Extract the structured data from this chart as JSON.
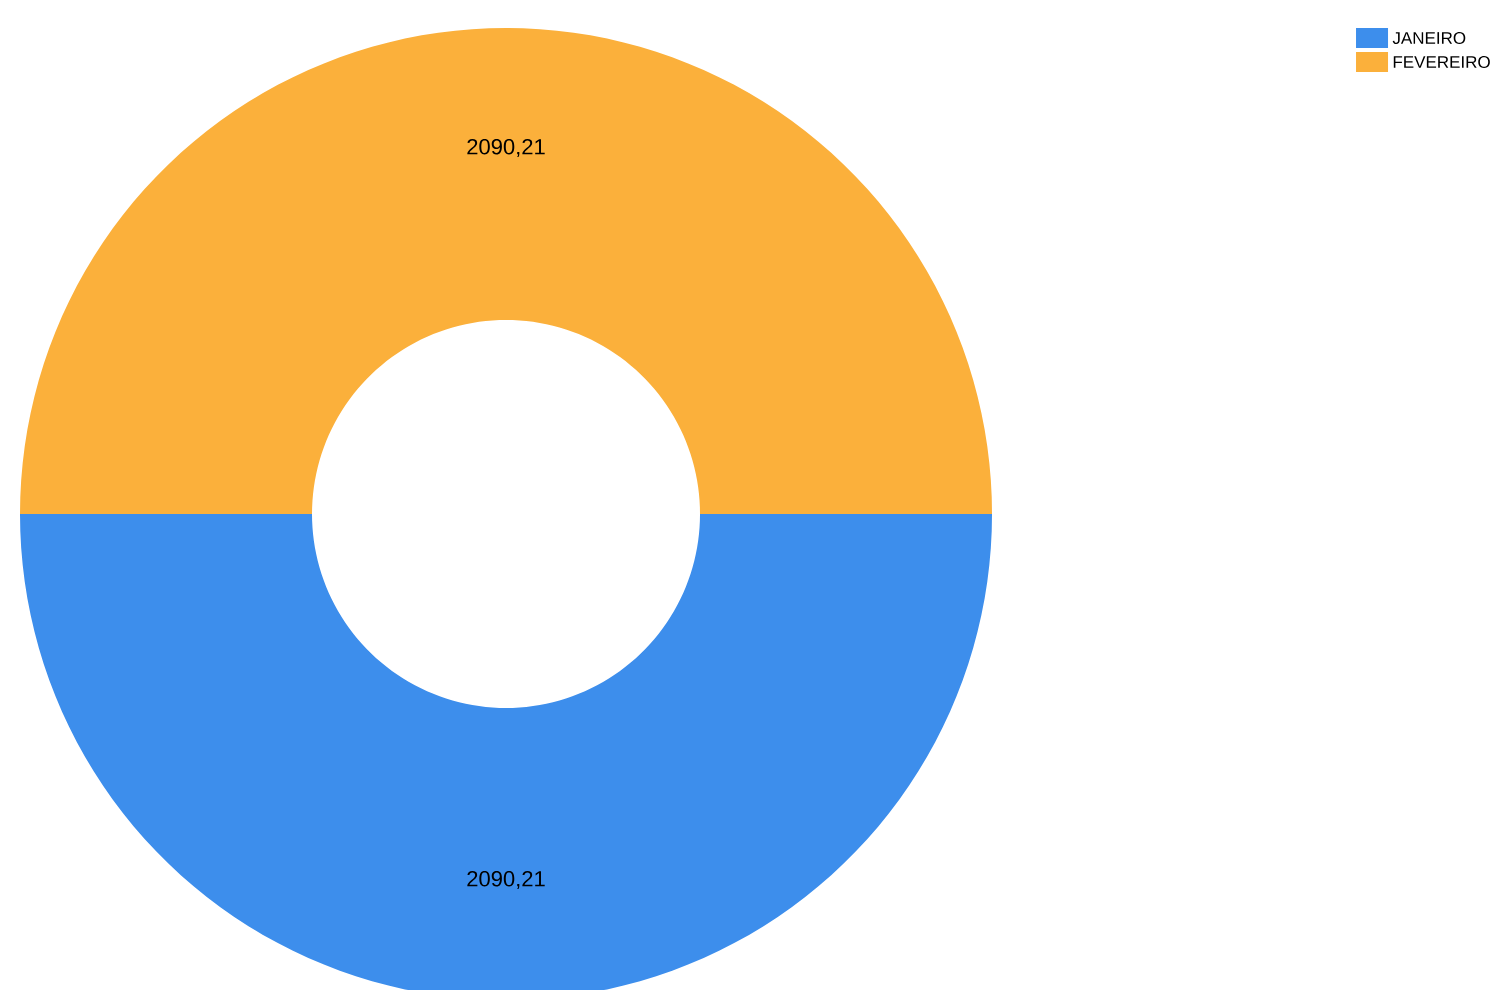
{
  "chart_data": {
    "type": "donut",
    "categories": [
      "JANEIRO",
      "FEVEREIRO"
    ],
    "values": [
      2090.21,
      2090.21
    ],
    "value_labels": [
      "2090,21",
      "2090,21"
    ],
    "colors": [
      "#3d8eec",
      "#fbb03b"
    ],
    "legend": "top right"
  }
}
